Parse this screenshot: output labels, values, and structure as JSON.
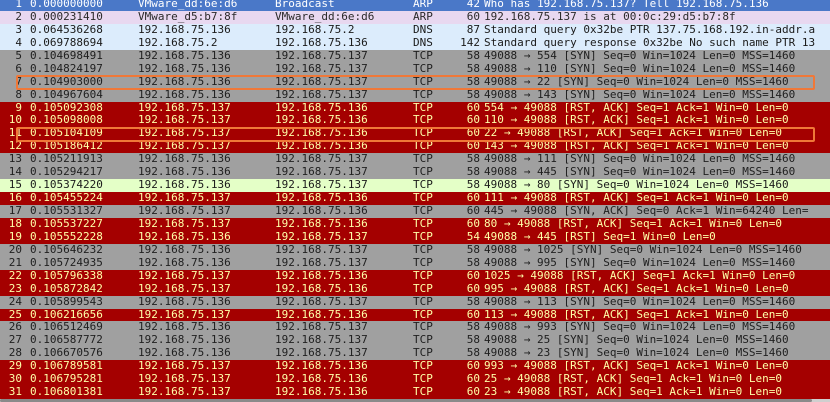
{
  "packets": [
    {
      "no": "1",
      "time": "0.000000000",
      "src": "VMware_dd:6e:d6",
      "dst": "Broadcast",
      "proto": "ARP",
      "len": "42",
      "info": "Who has 192.168.75.137? Tell 192.168.75.136",
      "style": "arp-sel"
    },
    {
      "no": "2",
      "time": "0.000231410",
      "src": "VMware_d5:b7:8f",
      "dst": "VMware_dd:6e:d6",
      "proto": "ARP",
      "len": "60",
      "info": "192.168.75.137 is at 00:0c:29:d5:b7:8f",
      "style": "arp"
    },
    {
      "no": "3",
      "time": "0.064536268",
      "src": "192.168.75.136",
      "dst": "192.168.75.2",
      "proto": "DNS",
      "len": "87",
      "info": "Standard query 0x32be PTR 137.75.168.192.in-addr.a",
      "style": "dns"
    },
    {
      "no": "4",
      "time": "0.069788694",
      "src": "192.168.75.2",
      "dst": "192.168.75.136",
      "proto": "DNS",
      "len": "142",
      "info": "Standard query response 0x32be No such name PTR 13",
      "style": "dns"
    },
    {
      "no": "5",
      "time": "0.104698491",
      "src": "192.168.75.136",
      "dst": "192.168.75.137",
      "proto": "TCP",
      "len": "58",
      "info": "49088 → 554 [SYN] Seq=0 Win=1024 Len=0 MSS=1460",
      "style": "tcp"
    },
    {
      "no": "6",
      "time": "0.104824197",
      "src": "192.168.75.136",
      "dst": "192.168.75.137",
      "proto": "TCP",
      "len": "58",
      "info": "49088 → 110 [SYN] Seq=0 Win=1024 Len=0 MSS=1460",
      "style": "tcp"
    },
    {
      "no": "7",
      "time": "0.104903000",
      "src": "192.168.75.136",
      "dst": "192.168.75.137",
      "proto": "TCP",
      "len": "58",
      "info": "49088 → 22 [SYN] Seq=0 Win=1024 Len=0 MSS=1460",
      "style": "tcp"
    },
    {
      "no": "8",
      "time": "0.104967604",
      "src": "192.168.75.136",
      "dst": "192.168.75.137",
      "proto": "TCP",
      "len": "58",
      "info": "49088 → 143 [SYN] Seq=0 Win=1024 Len=0 MSS=1460",
      "style": "tcp"
    },
    {
      "no": "9",
      "time": "0.105092308",
      "src": "192.168.75.137",
      "dst": "192.168.75.136",
      "proto": "TCP",
      "len": "60",
      "info": "554 → 49088 [RST, ACK] Seq=1 Ack=1 Win=0 Len=0",
      "style": "rst"
    },
    {
      "no": "10",
      "time": "0.105098008",
      "src": "192.168.75.137",
      "dst": "192.168.75.136",
      "proto": "TCP",
      "len": "60",
      "info": "110 → 49088 [RST, ACK] Seq=1 Ack=1 Win=0 Len=0",
      "style": "rst"
    },
    {
      "no": "11",
      "time": "0.105104109",
      "src": "192.168.75.137",
      "dst": "192.168.75.136",
      "proto": "TCP",
      "len": "60",
      "info": "22 → 49088 [RST, ACK] Seq=1 Ack=1 Win=0 Len=0",
      "style": "rst"
    },
    {
      "no": "12",
      "time": "0.105186412",
      "src": "192.168.75.137",
      "dst": "192.168.75.136",
      "proto": "TCP",
      "len": "60",
      "info": "143 → 49088 [RST, ACK] Seq=1 Ack=1 Win=0 Len=0",
      "style": "rst"
    },
    {
      "no": "13",
      "time": "0.105211913",
      "src": "192.168.75.136",
      "dst": "192.168.75.137",
      "proto": "TCP",
      "len": "58",
      "info": "49088 → 111 [SYN] Seq=0 Win=1024 Len=0 MSS=1460",
      "style": "tcp"
    },
    {
      "no": "14",
      "time": "0.105294217",
      "src": "192.168.75.136",
      "dst": "192.168.75.137",
      "proto": "TCP",
      "len": "58",
      "info": "49088 → 445 [SYN] Seq=0 Win=1024 Len=0 MSS=1460",
      "style": "tcp"
    },
    {
      "no": "15",
      "time": "0.105374220",
      "src": "192.168.75.136",
      "dst": "192.168.75.137",
      "proto": "TCP",
      "len": "58",
      "info": "49088 → 80 [SYN] Seq=0 Win=1024 Len=0 MSS=1460",
      "style": "syn-http"
    },
    {
      "no": "16",
      "time": "0.105455224",
      "src": "192.168.75.137",
      "dst": "192.168.75.136",
      "proto": "TCP",
      "len": "60",
      "info": "111 → 49088 [RST, ACK] Seq=1 Ack=1 Win=0 Len=0",
      "style": "rst"
    },
    {
      "no": "17",
      "time": "0.105531327",
      "src": "192.168.75.137",
      "dst": "192.168.75.136",
      "proto": "TCP",
      "len": "60",
      "info": "445 → 49088 [SYN, ACK] Seq=0 Ack=1 Win=64240 Len=",
      "style": "tcp"
    },
    {
      "no": "18",
      "time": "0.105537227",
      "src": "192.168.75.137",
      "dst": "192.168.75.136",
      "proto": "TCP",
      "len": "60",
      "info": "80 → 49088 [RST, ACK] Seq=1 Ack=1 Win=0 Len=0",
      "style": "rst"
    },
    {
      "no": "19",
      "time": "0.105552228",
      "src": "192.168.75.136",
      "dst": "192.168.75.137",
      "proto": "TCP",
      "len": "54",
      "info": "49088 → 445 [RST] Seq=1 Win=0 Len=0",
      "style": "rst"
    },
    {
      "no": "20",
      "time": "0.105646232",
      "src": "192.168.75.136",
      "dst": "192.168.75.137",
      "proto": "TCP",
      "len": "58",
      "info": "49088 → 1025 [SYN] Seq=0 Win=1024 Len=0 MSS=1460",
      "style": "tcp"
    },
    {
      "no": "21",
      "time": "0.105724935",
      "src": "192.168.75.136",
      "dst": "192.168.75.137",
      "proto": "TCP",
      "len": "58",
      "info": "49088 → 995 [SYN] Seq=0 Win=1024 Len=0 MSS=1460",
      "style": "tcp"
    },
    {
      "no": "22",
      "time": "0.105796338",
      "src": "192.168.75.137",
      "dst": "192.168.75.136",
      "proto": "TCP",
      "len": "60",
      "info": "1025 → 49088 [RST, ACK] Seq=1 Ack=1 Win=0 Len=0",
      "style": "rst"
    },
    {
      "no": "23",
      "time": "0.105872842",
      "src": "192.168.75.137",
      "dst": "192.168.75.136",
      "proto": "TCP",
      "len": "60",
      "info": "995 → 49088 [RST, ACK] Seq=1 Ack=1 Win=0 Len=0",
      "style": "rst"
    },
    {
      "no": "24",
      "time": "0.105899543",
      "src": "192.168.75.136",
      "dst": "192.168.75.137",
      "proto": "TCP",
      "len": "58",
      "info": "49088 → 113 [SYN] Seq=0 Win=1024 Len=0 MSS=1460",
      "style": "tcp"
    },
    {
      "no": "25",
      "time": "0.106216656",
      "src": "192.168.75.137",
      "dst": "192.168.75.136",
      "proto": "TCP",
      "len": "60",
      "info": "113 → 49088 [RST, ACK] Seq=1 Ack=1 Win=0 Len=0",
      "style": "rst"
    },
    {
      "no": "26",
      "time": "0.106512469",
      "src": "192.168.75.136",
      "dst": "192.168.75.137",
      "proto": "TCP",
      "len": "58",
      "info": "49088 → 993 [SYN] Seq=0 Win=1024 Len=0 MSS=1460",
      "style": "tcp"
    },
    {
      "no": "27",
      "time": "0.106587772",
      "src": "192.168.75.136",
      "dst": "192.168.75.137",
      "proto": "TCP",
      "len": "58",
      "info": "49088 → 25 [SYN] Seq=0 Win=1024 Len=0 MSS=1460",
      "style": "tcp"
    },
    {
      "no": "28",
      "time": "0.106670576",
      "src": "192.168.75.136",
      "dst": "192.168.75.137",
      "proto": "TCP",
      "len": "58",
      "info": "49088 → 23 [SYN] Seq=0 Win=1024 Len=0 MSS=1460",
      "style": "tcp"
    },
    {
      "no": "29",
      "time": "0.106789581",
      "src": "192.168.75.137",
      "dst": "192.168.75.136",
      "proto": "TCP",
      "len": "60",
      "info": "993 → 49088 [RST, ACK] Seq=1 Ack=1 Win=0 Len=0",
      "style": "rst"
    },
    {
      "no": "30",
      "time": "0.106795281",
      "src": "192.168.75.137",
      "dst": "192.168.75.136",
      "proto": "TCP",
      "len": "60",
      "info": "25 → 49088 [RST, ACK] Seq=1 Ack=1 Win=0 Len=0",
      "style": "rst"
    },
    {
      "no": "31",
      "time": "0.106801381",
      "src": "192.168.75.137",
      "dst": "192.168.75.136",
      "proto": "TCP",
      "len": "60",
      "info": "23 → 49088 [RST, ACK] Seq=1 Ack=1 Win=0 Len=0",
      "style": "rst"
    }
  ],
  "highlighted_packets": [
    "7",
    "11"
  ],
  "colors": {
    "arp": "#e8d8f0",
    "selected": "#4a78c8",
    "dns": "#dcecfc",
    "tcp": "#a0a0a0",
    "rst": "#a40000",
    "rst_text": "#ffffa8",
    "http_syn": "#e4ffc7",
    "highlight_box": "#f07838"
  }
}
